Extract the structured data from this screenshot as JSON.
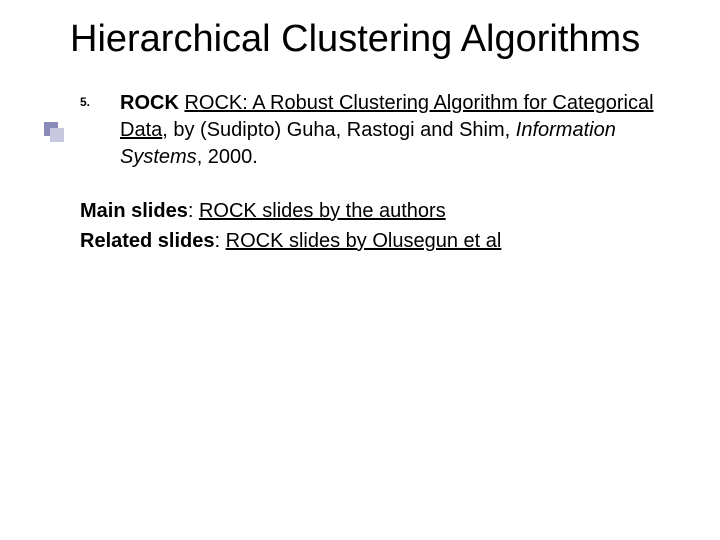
{
  "slide": {
    "title": "Hierarchical Clustering Algorithms",
    "title_fontsize": 38,
    "background_color": "#ffffff",
    "text_color": "#000000",
    "accent_color_dark": "#8a8ab8",
    "accent_color_light": "#c7c7e0",
    "body_fontsize": 20,
    "list": {
      "marker": "5.",
      "entry": {
        "lead_bold": "ROCK",
        "link_text": "ROCK: A Robust Clustering Algorithm for Categorical Data",
        "after_link": ", by (Sudipto) Guha, Rastogi and Shim, ",
        "journal_italic": "Information Systems",
        "tail": ", 2000."
      }
    },
    "main_slides": {
      "label": "Main slides",
      "sep": ": ",
      "link": "ROCK slides by the authors"
    },
    "related_slides": {
      "label": "Related slides",
      "sep": ": ",
      "link": "ROCK slides by Olusegun et al"
    }
  }
}
